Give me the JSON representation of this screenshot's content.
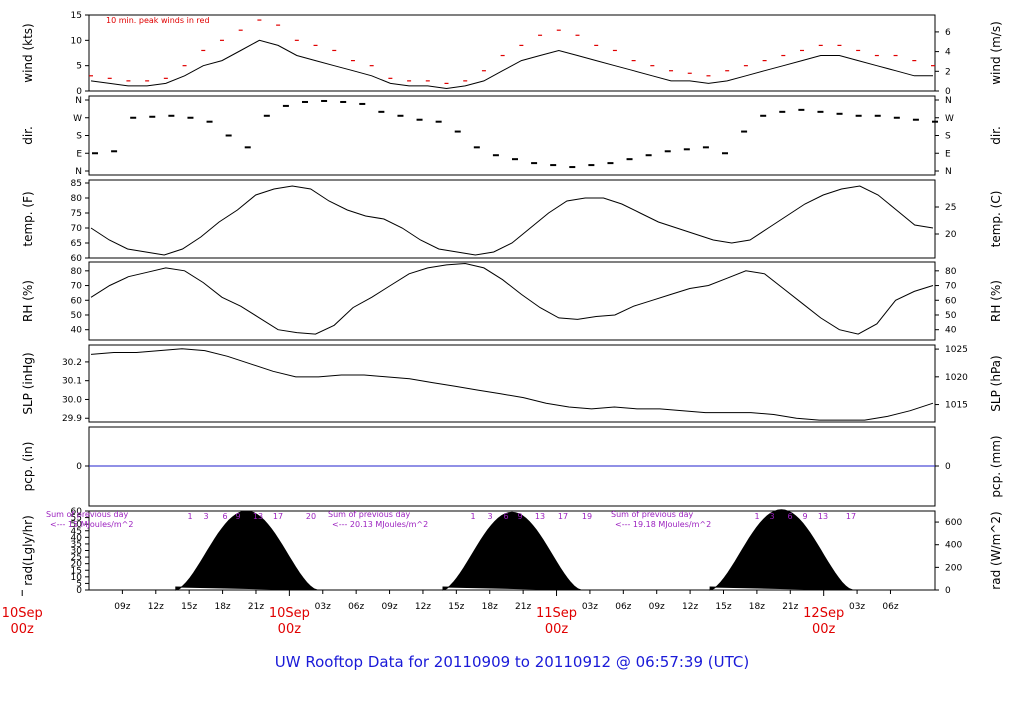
{
  "title": "UW Rooftop Data for 20110909  to  20110912 @ 06:57:39  (UTC)",
  "colors": {
    "title": "#1a1ad8",
    "peak": "#e00000",
    "date": "#e00000",
    "pcp": "#2222cc",
    "radnote": "#9b1fbf",
    "ink": "#000000"
  },
  "x_axis": {
    "hour_ticks": [
      "09z",
      "12z",
      "15z",
      "18z",
      "21z",
      "03z",
      "06z",
      "09z",
      "12z",
      "15z",
      "18z",
      "21z",
      "03z",
      "06z",
      "09z",
      "12z",
      "15z",
      "18z",
      "21z",
      "03z",
      "06z"
    ],
    "date_labels": [
      {
        "date": "10Sep",
        "time": "00z"
      },
      {
        "date": "10Sep",
        "time": "00z"
      },
      {
        "date": "11Sep",
        "time": "00z"
      },
      {
        "date": "12Sep",
        "time": "00z"
      }
    ]
  },
  "chart_data": [
    {
      "type": "line",
      "panel": "wind",
      "left_label": "wind (kts)",
      "right_label": "wind (m/s)",
      "left_ticks": [
        "0",
        "5",
        "10",
        "15"
      ],
      "right_ticks": [
        "0",
        "2",
        "4",
        "6"
      ],
      "ylim": [
        0,
        15
      ],
      "annotation": "10 min. peak winds in red",
      "series": [
        {
          "name": "wind",
          "values": [
            2,
            1.5,
            1,
            1,
            1.5,
            3,
            5,
            6,
            8,
            10,
            9,
            7,
            6,
            5,
            4,
            3,
            1.5,
            1,
            1,
            0.5,
            1,
            2,
            4,
            6,
            7,
            8,
            7,
            6,
            5,
            4,
            3,
            2,
            2,
            1.5,
            2,
            3,
            4,
            5,
            6,
            7,
            7,
            6,
            5,
            4,
            3,
            3
          ]
        },
        {
          "name": "10 min. peak winds",
          "values": [
            3,
            2.5,
            2,
            2,
            2.5,
            5,
            8,
            10,
            12,
            14,
            13,
            10,
            9,
            8,
            6,
            5,
            2.5,
            2,
            2,
            1.5,
            2,
            4,
            7,
            9,
            11,
            12,
            11,
            9,
            8,
            6,
            5,
            4,
            3.5,
            3,
            4,
            5,
            6,
            7,
            8,
            9,
            9,
            8,
            7,
            7,
            6,
            5
          ]
        }
      ]
    },
    {
      "type": "scatter",
      "panel": "dir",
      "left_label": "dir.",
      "right_label": "dir.",
      "left_ticks": [
        "N",
        "E",
        "S",
        "W",
        "N"
      ],
      "right_ticks": [
        "N",
        "E",
        "S",
        "W",
        "N"
      ],
      "series": [
        {
          "name": "dir",
          "values": [
            90,
            100,
            270,
            275,
            280,
            270,
            250,
            180,
            120,
            280,
            330,
            350,
            355,
            350,
            340,
            300,
            280,
            260,
            250,
            200,
            120,
            80,
            60,
            40,
            30,
            20,
            30,
            40,
            60,
            80,
            100,
            110,
            120,
            90,
            200,
            280,
            300,
            310,
            300,
            290,
            280,
            280,
            270,
            260,
            250
          ]
        }
      ]
    },
    {
      "type": "line",
      "panel": "temp",
      "left_label": "temp. (F)",
      "right_label": "temp. (C)",
      "left_ticks": [
        "60",
        "65",
        "70",
        "75",
        "80",
        "85"
      ],
      "right_ticks": [
        "20",
        "25"
      ],
      "ylim": [
        60,
        86
      ],
      "series": [
        {
          "name": "temp",
          "values": [
            70,
            66,
            63,
            62,
            61,
            63,
            67,
            72,
            76,
            81,
            83,
            84,
            83,
            79,
            76,
            74,
            73,
            70,
            66,
            63,
            62,
            61,
            62,
            65,
            70,
            75,
            79,
            80,
            80,
            78,
            75,
            72,
            70,
            68,
            66,
            65,
            66,
            70,
            74,
            78,
            81,
            83,
            84,
            81,
            76,
            71,
            70
          ]
        }
      ]
    },
    {
      "type": "line",
      "panel": "rh",
      "left_label": "RH (%)",
      "right_label": "RH (%)",
      "left_ticks": [
        "40",
        "50",
        "60",
        "70",
        "80"
      ],
      "right_ticks": [
        "40",
        "50",
        "60",
        "70",
        "80"
      ],
      "ylim": [
        33,
        86
      ],
      "series": [
        {
          "name": "RH",
          "values": [
            62,
            70,
            76,
            79,
            82,
            80,
            72,
            62,
            56,
            48,
            40,
            38,
            37,
            43,
            55,
            62,
            70,
            78,
            82,
            84,
            85,
            82,
            74,
            64,
            55,
            48,
            47,
            49,
            50,
            56,
            60,
            64,
            68,
            70,
            75,
            80,
            78,
            68,
            58,
            48,
            40,
            37,
            44,
            60,
            66,
            70
          ]
        }
      ]
    },
    {
      "type": "line",
      "panel": "slp",
      "left_label": "SLP (inHg)",
      "right_label": "SLP (hPa)",
      "left_ticks": [
        "29.9",
        "30.0",
        "30.1",
        "30.2"
      ],
      "right_ticks": [
        "1015",
        "1020",
        "1025"
      ],
      "ylim": [
        29.88,
        30.29
      ],
      "series": [
        {
          "name": "SLP",
          "values": [
            30.24,
            30.25,
            30.25,
            30.26,
            30.27,
            30.26,
            30.23,
            30.19,
            30.15,
            30.12,
            30.12,
            30.13,
            30.13,
            30.12,
            30.11,
            30.09,
            30.07,
            30.05,
            30.03,
            30.01,
            29.98,
            29.96,
            29.95,
            29.96,
            29.95,
            29.95,
            29.94,
            29.93,
            29.93,
            29.93,
            29.92,
            29.9,
            29.89,
            29.89,
            29.89,
            29.91,
            29.94,
            29.98
          ]
        }
      ]
    },
    {
      "type": "line",
      "panel": "pcp",
      "left_label": "pcp. (in)",
      "right_label": "pcp. (mm)",
      "left_ticks": [
        "0"
      ],
      "right_ticks": [
        "0"
      ],
      "series": [
        {
          "name": "pcp",
          "values": [
            0,
            0
          ]
        }
      ]
    },
    {
      "type": "area",
      "panel": "rad",
      "left_label": "rad(Lgly/hr)",
      "right_label": "rad (W/m^2)",
      "left_ticks": [
        "0",
        "5",
        "10",
        "15",
        "20",
        "25",
        "30",
        "35",
        "40",
        "45",
        "50",
        "55",
        "60"
      ],
      "right_ticks": [
        "0",
        "200",
        "400",
        "600"
      ],
      "ylim": [
        0,
        60
      ],
      "series": [
        {
          "name": "rad",
          "peaks": [
            60,
            59,
            61
          ],
          "start_hours": [
            13.8,
            13.8,
            13.8
          ],
          "end_hours": [
            26.5,
            26.2,
            26.6
          ]
        }
      ],
      "notes": [
        {
          "line1": "Sum of previous day",
          "line2": "<--- 15 MJoules/m^2"
        },
        {
          "line1": "Sum of previous day",
          "line2": "<--- 20.13 MJoules/m^2"
        },
        {
          "line1": "Sum of previous day",
          "line2": "<--- 19.18 MJoules/m^2"
        }
      ],
      "hour_labels": [
        [
          "1",
          "3",
          "6",
          "9",
          "13",
          "17",
          "20"
        ],
        [
          "1",
          "3",
          "6",
          "9",
          "13",
          "17",
          "19"
        ],
        [
          "1",
          "3",
          "6",
          "9",
          "13",
          "17"
        ]
      ]
    }
  ]
}
